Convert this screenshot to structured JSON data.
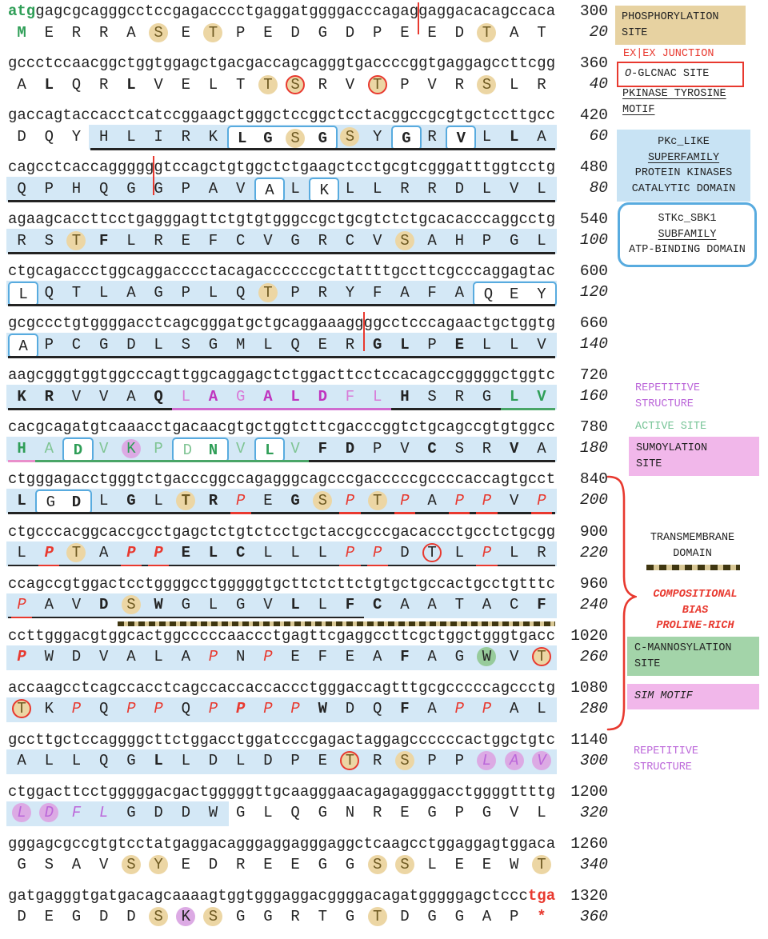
{
  "colors": {
    "ink": "#232323",
    "accentRed": "#e8392f",
    "rowHighlight": "#d4e8f6",
    "boxBorder": "#58abdf",
    "phosTan": "#ecd6a4",
    "legendTan": "#e7d2a1",
    "legendBlue": "#c8e3f4",
    "pink": "#f1b7ea",
    "legendGreen": "#a3d4a9",
    "purpleText": "#bb66d9",
    "activeGreen": "#77c497",
    "greenLetter": "#2f9e57",
    "greenLetterLight": "#7fc493",
    "magenta": "#bf35bf",
    "magentaLight": "#d87cd8",
    "purpleCircle": "#dcaae4",
    "greenCircle": "#97cb9b",
    "ulGreen": "#49a567",
    "ulMagenta": "#cf6bcf",
    "ulPink": "#e98fcb",
    "tmDark": "#3f3610",
    "tmTan": "#d8c795"
  },
  "rows": [
    {
      "dna": "atggagcgcagggcctccgagacccctgaggatggggacccagaggaggacacagccaca",
      "dnaNum": "300",
      "aa": "MERRASETPEDGDPEEDTAT",
      "aaNum": "20",
      "junction": 45,
      "dnaMarks": [
        {
          "f": 1,
          "t": 3,
          "cls": "green"
        }
      ],
      "styles": {
        "1": "b c-green",
        "6": "o-tan",
        "8": "o-tan",
        "18": "o-tan"
      },
      "underlines": [],
      "bg": null
    },
    {
      "dna": "gccctccaacggctggtggagctgacgaccagcagggtgaccccggtgaggagccttcgg",
      "dnaNum": "360",
      "aa": "ALQRLVELTTSRVTPVRSLR",
      "aaNum": "40",
      "styles": {
        "2": "b",
        "5": "b",
        "10": "o-tan",
        "11": "o-tanred",
        "14": "o-tanred",
        "18": "o-tan"
      },
      "underlines": [],
      "bg": null
    },
    {
      "dna": "gaccagtaccacctcatccggaagctgggctccggctcctacggccgcgtgctccttgcc",
      "dnaNum": "420",
      "aa": "DQYHLIRKLGSGSYGRVLLA",
      "aaNum": "60",
      "styles": {
        "9": "b x-l",
        "10": "b x-m",
        "11": "o-tan x-m",
        "12": "b x-r",
        "13": "o-tan",
        "15": "b x-s",
        "17": "b x-s",
        "19": "b"
      },
      "underlines": [
        [
          4,
          20,
          "black"
        ]
      ],
      "bg": [
        4,
        20
      ]
    },
    {
      "dna": "cagcctcaccaggggggtccagctgtggctctgaagctcctgcgtcgggatttggtcctg",
      "dnaNum": "480",
      "aa": "QPHQGGPAVALKLLRRDLVL",
      "aaNum": "80",
      "junction": 16,
      "styles": {
        "10": "x-s",
        "12": "x-s"
      },
      "underlines": [
        [
          1,
          20,
          "black"
        ]
      ],
      "bg": [
        1,
        20
      ]
    },
    {
      "dna": "agaagcaccttcctgagggagttctgtgtgggccgctgcgtctctgcacacccaggcctg",
      "dnaNum": "540",
      "aa": "RSTFLREFCVGRCVSAHPGL",
      "aaNum": "100",
      "styles": {
        "3": "o-tan",
        "4": "b",
        "15": "o-tan"
      },
      "underlines": [
        [
          1,
          20,
          "black"
        ]
      ],
      "bg": [
        1,
        20
      ]
    },
    {
      "dna": "ctgcagaccctggcaggacccctacagaccccccgctattttgccttcgcccaggagtac",
      "dnaNum": "600",
      "aa": "LQTLAGPLQTPRYFAFAQEY",
      "aaNum": "120",
      "styles": {
        "1": "x-s",
        "10": "o-tan",
        "18": "x-l",
        "19": "x-m",
        "20": "x-r"
      },
      "underlines": [
        [
          1,
          20,
          "black"
        ]
      ],
      "bg": [
        1,
        20
      ]
    },
    {
      "dna": "gcgccctgtggggacctcagcgggatgctgcaggaaaggggcctcccagaactgctggtg",
      "dnaNum": "660",
      "aa": "APCGDLSGMLQERGLPELLV",
      "aaNum": "140",
      "junction": 39,
      "styles": {
        "1": "x-s",
        "14": "b",
        "15": "b",
        "17": "b"
      },
      "underlines": [
        [
          1,
          20,
          "black"
        ]
      ],
      "bg": [
        1,
        20
      ]
    },
    {
      "dna": "aagcgggtggtggcccagttggcaggagctctggacttcctccacagccgggggctggtc",
      "dnaNum": "720",
      "aa": "KRVVAQLAGALDFLHSRGLV",
      "aaNum": "160",
      "styles": {
        "1": "b",
        "2": "b",
        "6": "b",
        "7": "c-mag2",
        "8": "b c-mag",
        "9": "c-mag2",
        "10": "b c-mag",
        "11": "b c-mag",
        "12": "b c-mag",
        "13": "c-mag2",
        "14": "c-mag2",
        "15": "b",
        "19": "b c-green",
        "20": "b c-green"
      },
      "underlines": [
        [
          1,
          6,
          "black"
        ],
        [
          7,
          14,
          "mag"
        ],
        [
          15,
          18,
          "black"
        ],
        [
          19,
          20,
          "green"
        ]
      ],
      "bg": [
        1,
        20
      ]
    },
    {
      "dna": "cacgcagatgtcaaacctgacaacgtgctggtcttcgacccggtctgcagccgtgtggcc",
      "dnaNum": "780",
      "aa": "HADVKPDNVLVFDPVCSRVA",
      "aaNum": "180",
      "styles": {
        "1": "b c-green",
        "2": "c-green2",
        "3": "b c-green x-s",
        "4": "c-green2",
        "5": "c-green o-purp",
        "6": "c-green2",
        "7": "c-green2 x-l",
        "8": "b c-green x-r",
        "9": "c-green2",
        "10": "b c-green x-s",
        "11": "c-green2",
        "12": "b",
        "13": "b",
        "16": "b",
        "19": "b"
      },
      "underlines": [
        [
          1,
          1,
          "pink"
        ],
        [
          2,
          11,
          "green"
        ],
        [
          12,
          20,
          "black"
        ]
      ],
      "bg": [
        1,
        20
      ]
    },
    {
      "dna": "ctgggagacctgggtctgacccggccagagggcagcccgacccccgccccaccagtgcct",
      "dnaNum": "840",
      "aa": "LGDLGLTRPEGSPTPAPPVP",
      "aaNum": "200",
      "styles": {
        "1": "b",
        "2": "x-l",
        "3": "b x-r",
        "5": "b",
        "7": "b o-tan",
        "8": "b",
        "9": "i c-red u-red",
        "11": "b",
        "12": "o-tan",
        "13": "i c-red u-red",
        "14": "o-tan",
        "15": "i c-red u-red",
        "17": "i c-red u-red",
        "18": "i c-red u-red",
        "20": "i c-red u-red"
      },
      "underlines": [
        [
          1,
          20,
          "black"
        ]
      ],
      "bg": [
        1,
        20
      ]
    },
    {
      "dna": "ctgcccacggcaccgcctgagctctgtctcctgctaccgcccgacaccctgcctctgcgg",
      "dnaNum": "900",
      "aa": "LPTAPPELCLLLPPDTLPLR",
      "aaNum": "220",
      "styles": {
        "2": "b i c-red u-red",
        "3": "o-tan",
        "5": "b i c-red u-red",
        "6": "b i c-red u-red",
        "7": "b",
        "8": "b",
        "9": "b",
        "13": "i c-red u-red",
        "14": "i c-red u-red",
        "16": "o-red",
        "18": "i c-red u-red"
      },
      "underlines": [
        [
          1,
          20,
          "black"
        ]
      ],
      "bg": [
        1,
        20
      ]
    },
    {
      "dna": "ccagccgtggactcctggggcctgggggtgcttctcttctgtgctgccactgcctgtttc",
      "dnaNum": "960",
      "aa": "PAVDSWGLGVLLFCAATACF",
      "aaNum": "240",
      "styles": {
        "1": "i c-red u-red",
        "4": "b",
        "5": "o-tan",
        "6": "b",
        "11": "b",
        "13": "b",
        "14": "b",
        "20": "b"
      },
      "underlines": [
        [
          1,
          13,
          "black"
        ]
      ],
      "bg": [
        1,
        20
      ],
      "tm": [
        5,
        20
      ]
    },
    {
      "dna": "ccttgggacgtggcactggcccccaaccctgagttcgaggccttcgctggctgggtgacc",
      "dnaNum": "1020",
      "aa": "PWDVALAPNPEFEAFAGWVT",
      "aaNum": "260",
      "styles": {
        "1": "b i c-red",
        "8": "i c-red",
        "10": "i c-red",
        "15": "b",
        "18": "o-green",
        "20": "o-tanred"
      },
      "underlines": [],
      "bg": [
        1,
        20
      ]
    },
    {
      "dna": "accaagcctcagccacctcagccaccaccaccctgggaccagtttgcgcccccagccctg",
      "dnaNum": "1080",
      "aa": "TKPQPPQPPPPWDQFAPPAL",
      "aaNum": "280",
      "styles": {
        "1": "o-tanred",
        "3": "i c-red",
        "5": "i c-red",
        "6": "i c-red",
        "8": "i c-red",
        "9": "b i c-red",
        "10": "i c-red",
        "11": "i c-red",
        "12": "b",
        "15": "b",
        "17": "i c-red",
        "18": "i c-red"
      },
      "underlines": [],
      "bg": [
        1,
        20
      ]
    },
    {
      "dna": "gccttgctccaggggcttctggacctggatcccgagactaggagccccccactggctgtc",
      "dnaNum": "1140",
      "aa": "ALLQGLLDLDPETRSPPLAV",
      "aaNum": "300",
      "styles": {
        "6": "b",
        "13": "o-tanred",
        "15": "o-tan",
        "18": "i c-purp o-purp",
        "19": "i c-purp o-purp",
        "20": "i c-purp o-purp"
      },
      "underlines": [],
      "bg": [
        1,
        20
      ]
    },
    {
      "dna": "ctggacttcctgggggacgactgggggttgcaagggaacagagagggacctggggttttg",
      "dnaNum": "1200",
      "aa": "LDFLGDDWGLQGNREGPGVL",
      "aaNum": "320",
      "styles": {
        "1": "i c-purp o-purp",
        "2": "i c-purp o-purp",
        "3": "i c-purp",
        "4": "i c-purp"
      },
      "underlines": [],
      "bg": [
        1,
        8
      ]
    },
    {
      "dna": "gggagcgccgtgtcctatgaggacagggaggagggaggctcaagcctggaggagtggaca",
      "dnaNum": "1260",
      "aa": "GSAVSYEDREEGGSSLEEWT",
      "aaNum": "340",
      "styles": {
        "5": "o-tan",
        "6": "o-tan",
        "14": "o-tan",
        "15": "o-tan",
        "20": "o-tan"
      },
      "underlines": [],
      "bg": null
    },
    {
      "dna": "gatgagggtgatgacagcaaaagtggtgggaggacggggacagatgggggagctccctga",
      "dnaNum": "1320",
      "aa": "DEGDDSKSGGRTGTDGGAP*",
      "aaNum": "360",
      "dnaMarks": [
        {
          "f": 58,
          "t": 60,
          "cls": "red"
        }
      ],
      "styles": {
        "6": "o-tan",
        "7": "o-purp",
        "8": "o-tan",
        "14": "o-tan",
        "20": "b c-red"
      },
      "underlines": [],
      "bg": null
    }
  ],
  "legend": [
    {
      "id": "phos",
      "name": "phosphorylation-site",
      "lines": [
        {
          "t": "PHOSPHORYLATION"
        },
        {
          "t": "SITE"
        }
      ]
    },
    {
      "id": "exex",
      "name": "exon-junction",
      "lines": [
        {
          "t": "EX|EX JUNCTION"
        }
      ]
    },
    {
      "id": "oglcnac",
      "name": "o-glcnac-site",
      "lines": [
        {
          "preIt": "O",
          "t": "-GLCNAC SITE"
        }
      ]
    },
    {
      "id": "pkinase",
      "name": "pkinase-tyrosine-motif",
      "lines": [
        {
          "t": "PKINASE TYROSINE",
          "u": 1
        },
        {
          "t": "MOTIF",
          "u": 1
        }
      ]
    },
    {
      "id": "pkc",
      "name": "pkc-like-superfamily",
      "lines": [
        {
          "t": "PKc_LIKE"
        },
        {
          "t": "SUPERFAMILY",
          "u": 1
        },
        {
          "t": "PROTEIN KINASES"
        },
        {
          "t": "CATALYTIC DOMAIN"
        }
      ]
    },
    {
      "id": "stkc",
      "name": "stkc-sbk1-subfamily",
      "lines": [
        {
          "t": "STKc_SBK1"
        },
        {
          "t": "SUBFAMILY",
          "u": 1
        },
        {
          "t": "ATP-BINDING DOMAIN"
        }
      ]
    },
    {
      "id": "rep1",
      "name": "repetitive-structure",
      "lines": [
        {
          "t": "REPETITIVE"
        },
        {
          "t": "STRUCTURE"
        }
      ]
    },
    {
      "id": "active",
      "name": "active-site",
      "lines": [
        {
          "t": "ACTIVE SITE"
        }
      ]
    },
    {
      "id": "sumo",
      "name": "sumoylation-site",
      "lines": [
        {
          "t": "SUMOYLATION"
        },
        {
          "t": "SITE"
        }
      ]
    },
    {
      "id": "tmd",
      "name": "transmembrane-domain",
      "lines": [
        {
          "t": "TRANSMEMBRANE"
        },
        {
          "t": "DOMAIN"
        }
      ]
    },
    {
      "id": "tmdash",
      "name": "transmembrane-dash-sample",
      "lines": []
    },
    {
      "id": "comp",
      "name": "compositional-bias",
      "lines": [
        {
          "t": "COMPOSITIONAL"
        },
        {
          "t": "BIAS"
        },
        {
          "t": "PROLINE-RICH"
        }
      ]
    },
    {
      "id": "cmanno",
      "name": "c-mannosylation-site",
      "lines": [
        {
          "t": "C-MANNOSYLATION"
        },
        {
          "t": "SITE"
        }
      ]
    },
    {
      "id": "sim",
      "name": "sim-motif",
      "lines": [
        {
          "t": "SIM MOTIF"
        }
      ]
    },
    {
      "id": "rep2",
      "name": "repetitive-structure",
      "lines": [
        {
          "t": "REPETITIVE"
        },
        {
          "t": "STRUCTURE"
        }
      ]
    }
  ]
}
